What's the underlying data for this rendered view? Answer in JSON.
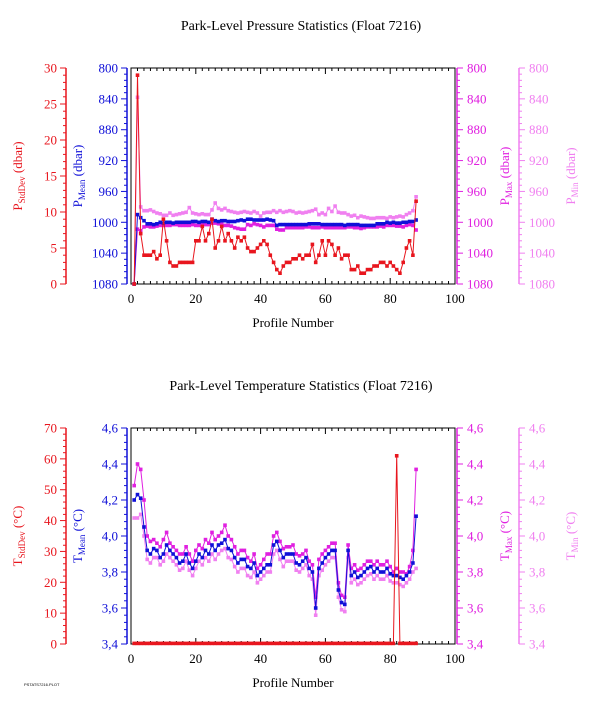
{
  "colors": {
    "stddev": "#e8161e",
    "mean": "#1010d8",
    "max": "#e020e0",
    "min": "#f080f0",
    "axis_black": "#000000"
  },
  "footer_text": "PSTATS7216.PLOT",
  "chart_data": [
    {
      "type": "line",
      "title": "Park-Level Pressure Statistics (Float 7216)",
      "xlabel": "Profile Number",
      "xlim": [
        0,
        100
      ],
      "x_ticks": [
        0,
        20,
        40,
        60,
        80,
        100
      ],
      "axes": [
        {
          "key": "stddev",
          "label_main": "P",
          "label_sub": "StdDev",
          "label_unit": " (dbar)",
          "ticks": [
            "0",
            "5",
            "10",
            "15",
            "20",
            "25",
            "30"
          ],
          "range": [
            0,
            30
          ],
          "inverted": false
        },
        {
          "key": "mean",
          "label_main": "P",
          "label_sub": "Mean",
          "label_unit": " (dbar)",
          "ticks": [
            "1080",
            "1040",
            "1000",
            "960",
            "920",
            "880",
            "840",
            "800"
          ],
          "range": [
            1080,
            800
          ],
          "inverted": true
        },
        {
          "key": "max",
          "label_main": "P",
          "label_sub": "Max",
          "label_unit": " (dbar)",
          "ticks": [
            "1080",
            "1040",
            "1000",
            "960",
            "920",
            "880",
            "840",
            "800"
          ],
          "range": [
            1080,
            800
          ],
          "inverted": true
        },
        {
          "key": "min",
          "label_main": "P",
          "label_sub": "Min",
          "label_unit": " (dbar)",
          "ticks": [
            "1080",
            "1040",
            "1000",
            "960",
            "920",
            "880",
            "840",
            "800"
          ],
          "range": [
            1080,
            800
          ],
          "inverted": true
        }
      ],
      "x": [
        1,
        2,
        3,
        4,
        5,
        6,
        7,
        8,
        9,
        10,
        11,
        12,
        13,
        14,
        15,
        16,
        17,
        18,
        19,
        20,
        21,
        22,
        23,
        24,
        25,
        26,
        27,
        28,
        29,
        30,
        31,
        32,
        33,
        34,
        35,
        36,
        37,
        38,
        39,
        40,
        41,
        42,
        43,
        44,
        45,
        46,
        47,
        48,
        49,
        50,
        51,
        52,
        53,
        54,
        55,
        56,
        57,
        58,
        59,
        60,
        61,
        62,
        63,
        64,
        65,
        66,
        67,
        68,
        69,
        70,
        71,
        72,
        73,
        74,
        75,
        76,
        77,
        78,
        79,
        80,
        81,
        82,
        83,
        84,
        85,
        86,
        87,
        88
      ],
      "series": [
        {
          "key": "stddev",
          "axis": "stddev",
          "values": [
            0,
            29,
            7,
            4,
            4,
            4,
            4.5,
            3.5,
            4,
            9,
            6,
            3,
            2.5,
            2.5,
            3,
            3,
            3,
            3,
            3,
            6,
            6,
            8,
            6,
            7,
            9,
            5,
            6,
            8,
            6,
            7,
            6,
            5,
            6.5,
            6,
            6.5,
            5,
            4.5,
            4.5,
            5,
            5.5,
            6,
            5.5,
            4,
            3,
            2,
            1.5,
            2.5,
            3,
            3,
            3.5,
            3.5,
            4,
            3.5,
            4,
            4,
            5.5,
            3,
            4,
            6,
            4,
            6,
            5.5,
            4,
            5,
            3.5,
            4,
            4,
            2,
            2,
            2.5,
            1.5,
            1.5,
            2,
            2,
            2.5,
            2.5,
            3,
            3,
            2.5,
            3,
            2.5,
            2,
            1.5,
            3,
            5,
            6,
            4,
            11.5
          ]
        },
        {
          "key": "mean",
          "axis": "mean",
          "values": [
            1080,
            990,
            994,
            998,
            1002,
            1002,
            1003,
            1002,
            1000,
            1001,
            1000,
            1000,
            1001,
            1000,
            1000,
            1000,
            1000,
            1000,
            999,
            999,
            1000,
            999,
            999,
            1000,
            996,
            998,
            999,
            998,
            998,
            999,
            999,
            999,
            998,
            997,
            998,
            996,
            996,
            997,
            997,
            997,
            997,
            996,
            997,
            998,
            1004,
            1003,
            1003,
            1003,
            1003,
            1003,
            1003,
            1003,
            1003,
            1003,
            1002,
            1002,
            1002,
            1002,
            1003,
            1003,
            1003,
            1003,
            1003,
            1003,
            1003,
            1004,
            1003,
            1003,
            1003,
            1003,
            1004,
            1004,
            1004,
            1004,
            1004,
            1002,
            1002,
            1002,
            1000,
            1001,
            1000,
            1001,
            1001,
            1000,
            1000,
            999,
            999,
            997
          ]
        },
        {
          "key": "max",
          "axis": "max",
          "values": [
            1080,
            1009,
            1011,
            1006,
            1005,
            1006,
            1006,
            1005,
            1004,
            1004,
            1004,
            1004,
            1003,
            1003,
            1004,
            1004,
            1004,
            1004,
            1003,
            1004,
            1004,
            1002,
            1003,
            1003,
            1001,
            1001,
            1002,
            1002,
            1004,
            1004,
            1005,
            1007,
            1008,
            1009,
            1009,
            1003,
            1004,
            1002,
            1003,
            1004,
            1006,
            1004,
            1004,
            1004,
            1009,
            1010,
            1010,
            1007,
            1007,
            1007,
            1007,
            1007,
            1007,
            1006,
            1006,
            1007,
            1007,
            1007,
            1006,
            1007,
            1007,
            1007,
            1007,
            1007,
            1007,
            1007,
            1006,
            1006,
            1007,
            1007,
            1008,
            1007,
            1006,
            1006,
            1006,
            1006,
            1005,
            1006,
            1004,
            1004,
            1004,
            1005,
            1005,
            1006,
            1004,
            1003,
            1004,
            1010
          ]
        },
        {
          "key": "min",
          "axis": "min",
          "values": [
            1080,
            838,
            980,
            985,
            985,
            984,
            986,
            988,
            989,
            991,
            991,
            988,
            991,
            990,
            989,
            988,
            987,
            981,
            988,
            989,
            990,
            989,
            990,
            990,
            984,
            975,
            982,
            984,
            982,
            985,
            986,
            987,
            988,
            987,
            986,
            987,
            988,
            986,
            988,
            992,
            988,
            987,
            987,
            985,
            987,
            985,
            987,
            986,
            985,
            986,
            988,
            987,
            988,
            987,
            986,
            985,
            983,
            990,
            988,
            990,
            982,
            986,
            979,
            987,
            988,
            988,
            990,
            992,
            991,
            994,
            992,
            993,
            994,
            995,
            995,
            994,
            994,
            994,
            995,
            993,
            994,
            993,
            992,
            993,
            990,
            988,
            985,
            967
          ]
        }
      ]
    },
    {
      "type": "line",
      "title": "Park-Level Temperature Statistics (Float 7216)",
      "xlabel": "Profile Number",
      "xlim": [
        0,
        100
      ],
      "x_ticks": [
        0,
        20,
        40,
        60,
        80,
        100
      ],
      "axes": [
        {
          "key": "stddev",
          "label_main": "T",
          "label_sub": "StdDev",
          "label_unit": " (°C)",
          "ticks": [
            "0",
            "10",
            "20",
            "30",
            "40",
            "50",
            "60",
            "70"
          ],
          "range": [
            0,
            70
          ],
          "inverted": false
        },
        {
          "key": "mean",
          "label_main": "T",
          "label_sub": "Mean",
          "label_unit": " (°C)",
          "ticks": [
            "3,4",
            "3,6",
            "3,8",
            "4,0",
            "4,2",
            "4,4",
            "4,6"
          ],
          "range": [
            3.4,
            4.6
          ],
          "inverted": false
        },
        {
          "key": "max",
          "label_main": "T",
          "label_sub": "Max",
          "label_unit": " (°C)",
          "ticks": [
            "3,4",
            "3,6",
            "3,8",
            "4,0",
            "4,2",
            "4,4",
            "4,6"
          ],
          "range": [
            3.4,
            4.6
          ],
          "inverted": false
        },
        {
          "key": "min",
          "label_main": "T",
          "label_sub": "Min",
          "label_unit": " (°C)",
          "ticks": [
            "3,4",
            "3,6",
            "3,8",
            "4,0",
            "4,2",
            "4,4",
            "4,6"
          ],
          "range": [
            3.4,
            4.6
          ],
          "inverted": false
        }
      ],
      "x": [
        1,
        2,
        3,
        4,
        5,
        6,
        7,
        8,
        9,
        10,
        11,
        12,
        13,
        14,
        15,
        16,
        17,
        18,
        19,
        20,
        21,
        22,
        23,
        24,
        25,
        26,
        27,
        28,
        29,
        30,
        31,
        32,
        33,
        34,
        35,
        36,
        37,
        38,
        39,
        40,
        41,
        42,
        43,
        44,
        45,
        46,
        47,
        48,
        49,
        50,
        51,
        52,
        53,
        54,
        55,
        56,
        57,
        58,
        59,
        60,
        61,
        62,
        63,
        64,
        65,
        66,
        67,
        68,
        69,
        70,
        71,
        72,
        73,
        74,
        75,
        76,
        77,
        78,
        79,
        80,
        81,
        82,
        83,
        84,
        85,
        86,
        87,
        88
      ],
      "series": [
        {
          "key": "stddev",
          "axis": "stddev",
          "values": [
            0.2,
            0.2,
            0.2,
            0.2,
            0.2,
            0.2,
            0.2,
            0.2,
            0.2,
            0.2,
            0.2,
            0.2,
            0.2,
            0.2,
            0.2,
            0.2,
            0.2,
            0.2,
            0.2,
            0.2,
            0.2,
            0.2,
            0.2,
            0.2,
            0.2,
            0.2,
            0.2,
            0.2,
            0.2,
            0.2,
            0.2,
            0.2,
            0.2,
            0.2,
            0.2,
            0.2,
            0.2,
            0.2,
            0.2,
            0.2,
            0.2,
            0.2,
            0.2,
            0.2,
            0.2,
            0.2,
            0.2,
            0.2,
            0.2,
            0.2,
            0.2,
            0.2,
            0.2,
            0.2,
            0.2,
            0.2,
            0.2,
            0.2,
            0.2,
            0.2,
            0.2,
            0.2,
            0.2,
            0.2,
            0.2,
            0.2,
            0.2,
            0.2,
            0.2,
            0.2,
            0.2,
            0.2,
            0.2,
            0.2,
            0.2,
            0.2,
            0.2,
            0.2,
            0.2,
            0.2,
            0.2,
            61,
            0.2,
            0.2,
            0.2,
            0.2,
            0.2,
            0.2
          ]
        },
        {
          "key": "mean",
          "axis": "mean",
          "values": [
            4.2,
            4.23,
            4.21,
            4.05,
            3.92,
            3.9,
            3.93,
            3.92,
            3.88,
            3.9,
            3.95,
            3.92,
            3.9,
            3.88,
            3.85,
            3.86,
            3.9,
            3.85,
            3.82,
            3.86,
            3.9,
            3.88,
            3.92,
            3.9,
            3.95,
            3.92,
            3.95,
            3.96,
            3.98,
            3.93,
            3.92,
            3.88,
            3.85,
            3.87,
            3.87,
            3.83,
            3.82,
            3.85,
            3.78,
            3.8,
            3.82,
            3.84,
            3.84,
            3.95,
            3.97,
            3.92,
            3.88,
            3.9,
            3.9,
            3.9,
            3.85,
            3.84,
            3.86,
            3.88,
            3.82,
            3.8,
            3.6,
            3.82,
            3.85,
            3.88,
            3.9,
            3.92,
            3.92,
            3.7,
            3.63,
            3.62,
            3.92,
            3.78,
            3.8,
            3.77,
            3.78,
            3.8,
            3.82,
            3.83,
            3.8,
            3.82,
            3.8,
            3.8,
            3.82,
            3.79,
            3.78,
            3.78,
            3.77,
            3.76,
            3.78,
            3.8,
            3.85,
            4.11
          ]
        },
        {
          "key": "max",
          "axis": "max",
          "values": [
            4.28,
            4.4,
            4.37,
            4.2,
            4.0,
            3.97,
            3.98,
            3.96,
            3.94,
            3.98,
            4.02,
            3.96,
            3.94,
            3.92,
            3.9,
            3.9,
            3.94,
            3.9,
            3.86,
            3.92,
            3.95,
            3.93,
            3.98,
            3.96,
            4.02,
            3.98,
            4.0,
            4.02,
            4.06,
            4.0,
            3.98,
            3.94,
            3.9,
            3.92,
            3.92,
            3.88,
            3.86,
            3.9,
            3.82,
            3.84,
            3.87,
            3.9,
            3.9,
            4.0,
            4.02,
            3.97,
            3.93,
            3.94,
            3.94,
            3.95,
            3.9,
            3.89,
            3.9,
            3.92,
            3.86,
            3.84,
            3.66,
            3.87,
            3.9,
            3.92,
            3.94,
            3.96,
            3.96,
            3.74,
            3.67,
            3.66,
            3.95,
            3.82,
            3.84,
            3.81,
            3.82,
            3.84,
            3.86,
            3.86,
            3.84,
            3.86,
            3.84,
            3.84,
            3.86,
            3.83,
            3.8,
            3.82,
            3.8,
            3.8,
            3.79,
            3.83,
            3.92,
            4.37
          ]
        },
        {
          "key": "min",
          "axis": "min",
          "values": [
            4.1,
            4.1,
            4.12,
            4.0,
            3.87,
            3.85,
            3.88,
            3.88,
            3.84,
            3.86,
            3.9,
            3.88,
            3.86,
            3.84,
            3.81,
            3.82,
            3.86,
            3.81,
            3.78,
            3.82,
            3.86,
            3.84,
            3.88,
            3.86,
            3.9,
            3.87,
            3.9,
            3.92,
            3.93,
            3.88,
            3.87,
            3.83,
            3.8,
            3.82,
            3.82,
            3.78,
            3.77,
            3.8,
            3.74,
            3.76,
            3.78,
            3.8,
            3.8,
            3.9,
            3.92,
            3.87,
            3.83,
            3.86,
            3.86,
            3.86,
            3.81,
            3.8,
            3.82,
            3.84,
            3.78,
            3.76,
            3.56,
            3.78,
            3.81,
            3.84,
            3.86,
            3.88,
            3.88,
            3.66,
            3.59,
            3.58,
            3.88,
            3.74,
            3.76,
            3.73,
            3.74,
            3.76,
            3.78,
            3.79,
            3.76,
            3.78,
            3.76,
            3.76,
            3.78,
            3.75,
            3.74,
            3.74,
            3.73,
            3.72,
            3.74,
            3.76,
            3.8,
            3.82
          ]
        }
      ]
    }
  ]
}
